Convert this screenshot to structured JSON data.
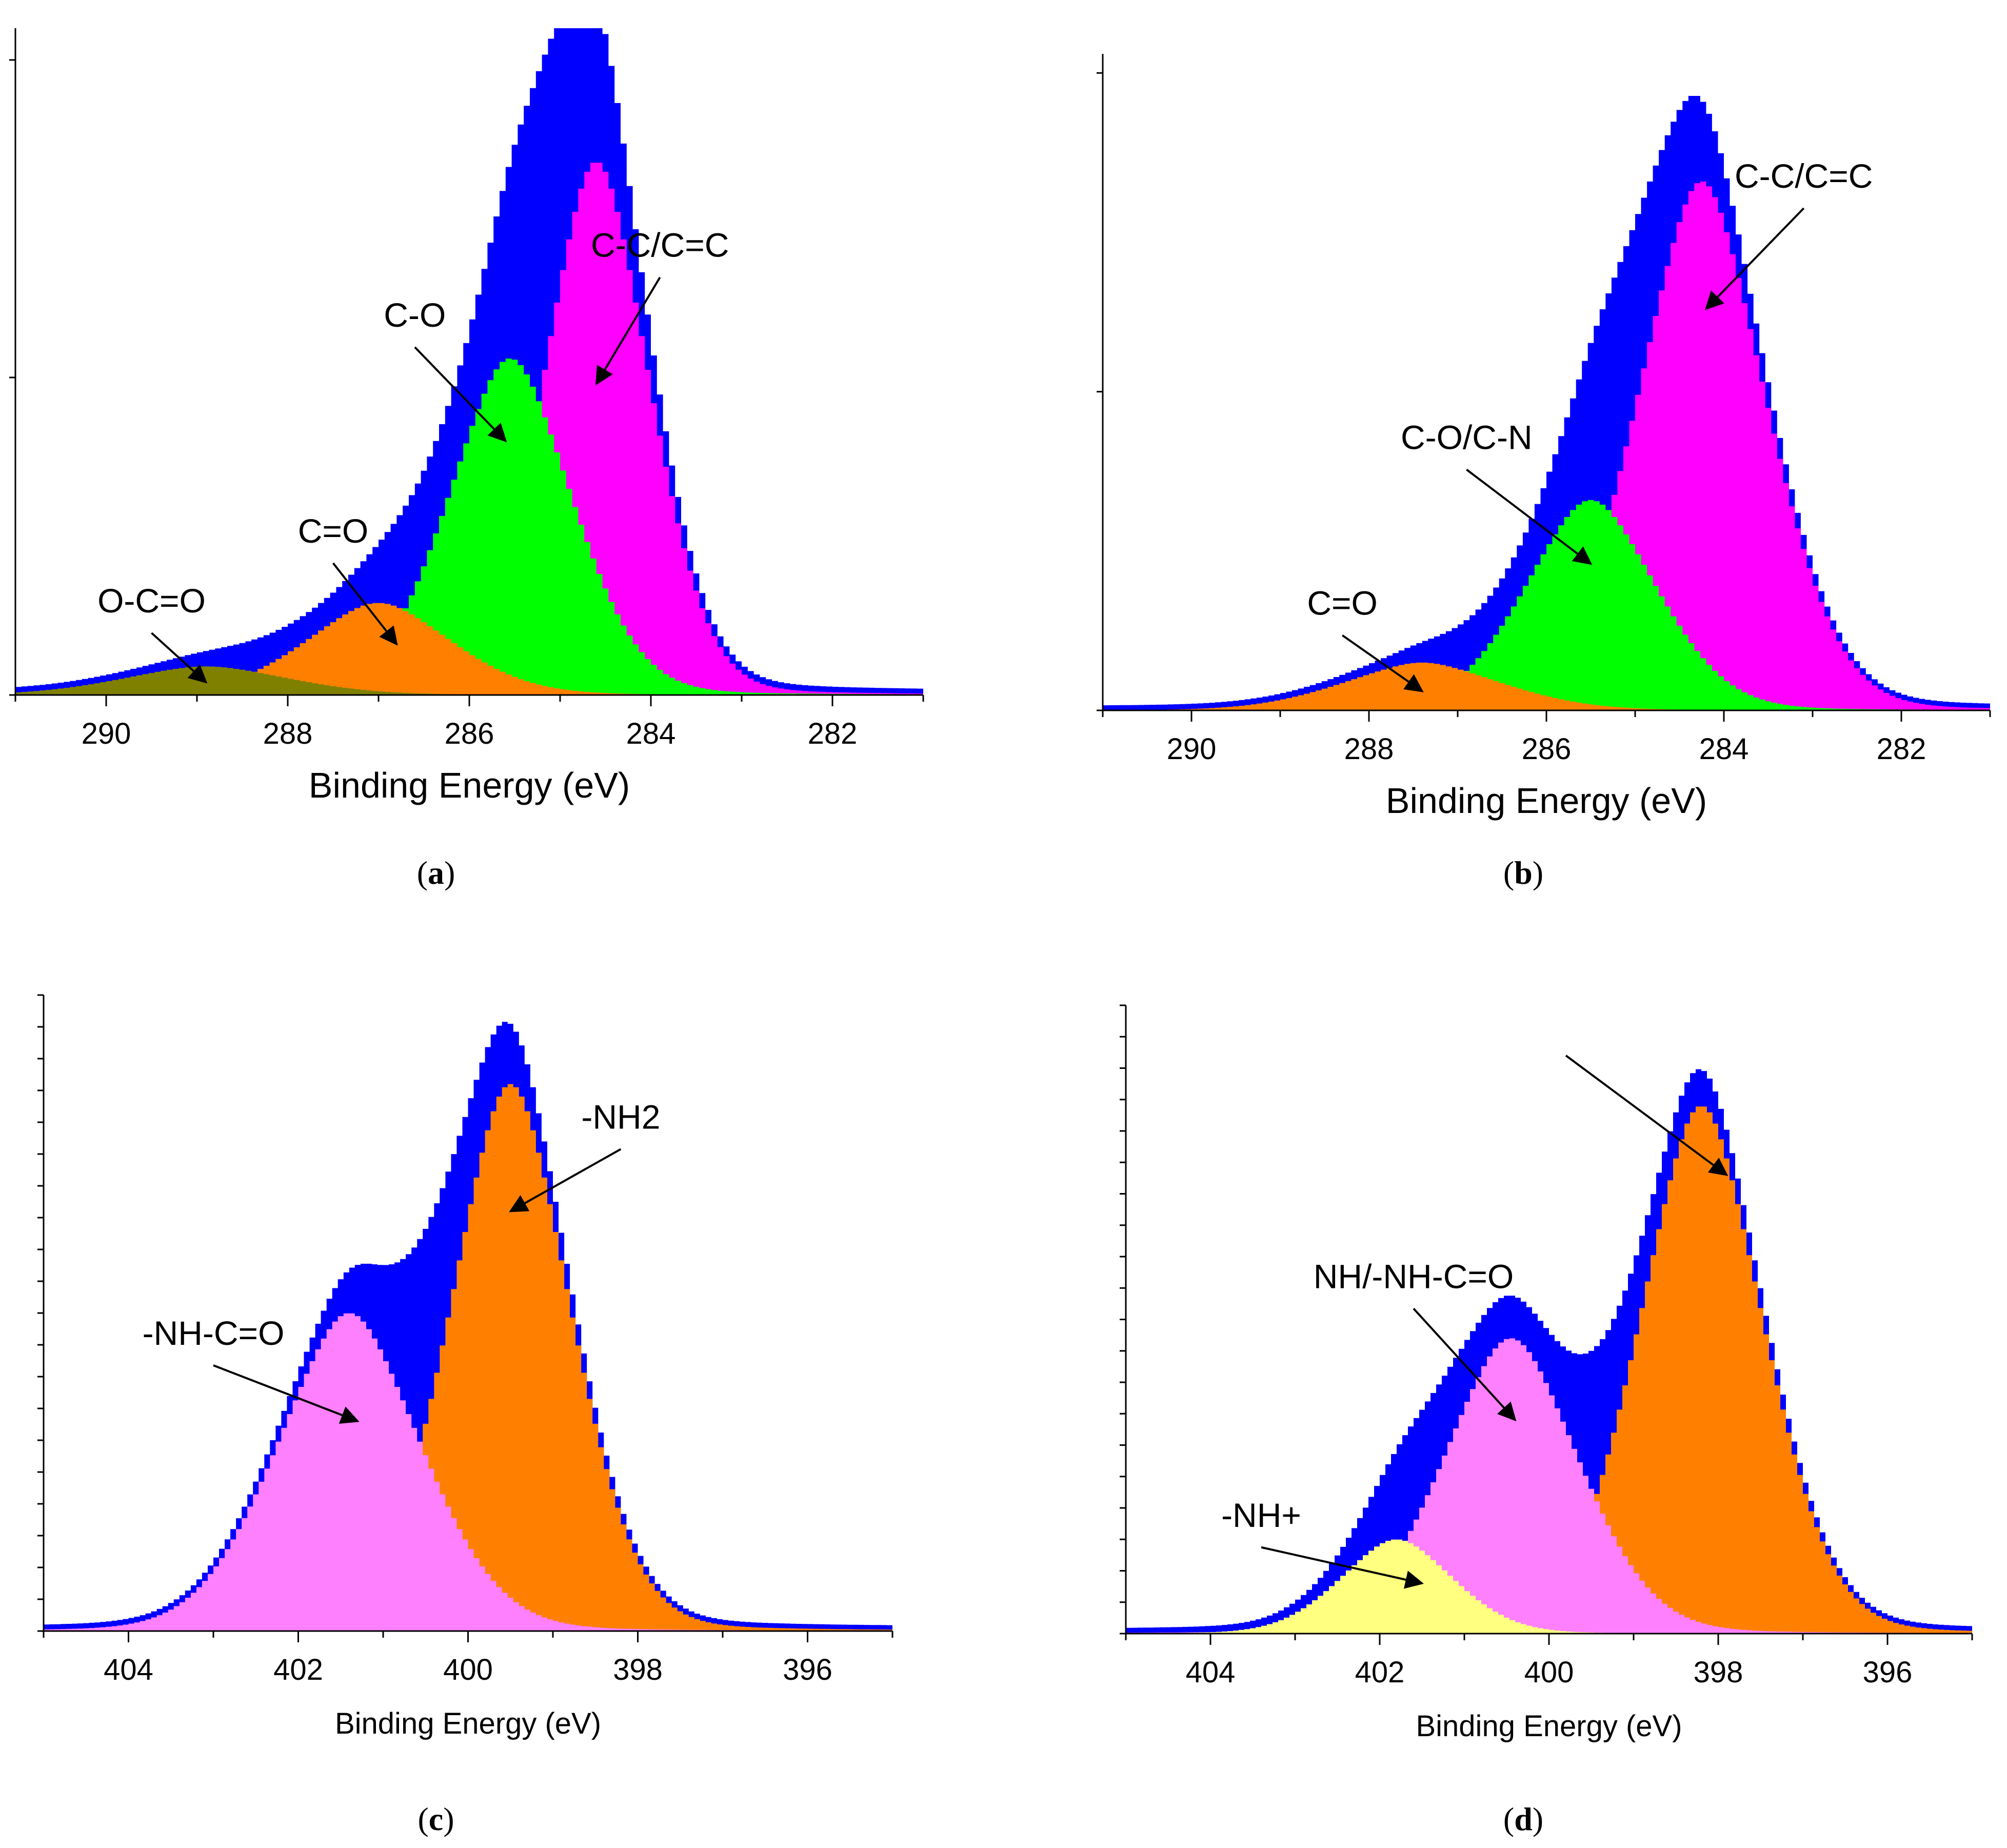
{
  "figure": {
    "background": "#ffffff"
  },
  "colors": {
    "envelope": "#0000ff",
    "magenta": "#ff00ff",
    "green": "#00ff00",
    "orange": "#ff8000",
    "olive": "#808000",
    "pink": "#ff80ff",
    "yellow": "#ffff80",
    "axis": "#000000"
  },
  "chart_data": [
    {
      "id": "a",
      "type": "area",
      "caption": "a",
      "xlabel": "Binding Energy (eV)",
      "ylabel": "",
      "xlim": [
        291,
        281
      ],
      "ylim": [
        0,
        1.05
      ],
      "xticks": [
        290,
        288,
        286,
        284,
        282
      ],
      "y_tick_values": [
        0,
        0.5,
        1.0
      ],
      "y_ticks_labeled": false,
      "envelope_color": "envelope",
      "series": [
        {
          "name": "C-C/C=C",
          "color": "magenta",
          "center": 284.6,
          "sigma": 0.62,
          "gamma": 0.45,
          "mix": 0.18,
          "amplitude": 0.84
        },
        {
          "name": "C-O",
          "color": "green",
          "center": 285.55,
          "sigma": 0.72,
          "gamma": 0.5,
          "mix": 0.18,
          "amplitude": 0.53
        },
        {
          "name": "C=O",
          "color": "orange",
          "center": 287.0,
          "sigma": 0.85,
          "gamma": 0.6,
          "mix": 0.2,
          "amplitude": 0.145
        },
        {
          "name": "O-C=O",
          "color": "olive",
          "center": 288.9,
          "sigma": 0.95,
          "gamma": 0.7,
          "mix": 0.2,
          "amplitude": 0.045
        }
      ],
      "annotations": [
        {
          "text": "C-C/C=C",
          "x": 283.9,
          "y": 0.69,
          "ax": 284.6,
          "ay": 0.49
        },
        {
          "text": "C-O",
          "x": 286.6,
          "y": 0.58,
          "ax": 285.6,
          "ay": 0.4
        },
        {
          "text": "C=O",
          "x": 287.5,
          "y": 0.24,
          "ax": 286.8,
          "ay": 0.08
        },
        {
          "text": "O-C=O",
          "x": 289.5,
          "y": 0.13,
          "ax": 288.9,
          "ay": 0.02
        }
      ]
    },
    {
      "id": "b",
      "type": "area",
      "caption": "b",
      "xlabel": "Binding Energy (eV)",
      "ylabel": "",
      "xlim": [
        291,
        281
      ],
      "ylim": [
        0,
        1.03
      ],
      "xticks": [
        290,
        288,
        286,
        284,
        282
      ],
      "y_tick_values": [
        0,
        0.5,
        1.0
      ],
      "y_ticks_labeled": false,
      "envelope_color": "envelope",
      "series": [
        {
          "name": "C-C/C=C",
          "color": "magenta",
          "center": 284.25,
          "sigma": 0.78,
          "gamma": 0.5,
          "mix": 0.18,
          "amplitude": 0.83
        },
        {
          "name": "C-O/C-N",
          "color": "green",
          "center": 285.5,
          "sigma": 0.78,
          "gamma": 0.55,
          "mix": 0.18,
          "amplitude": 0.33
        },
        {
          "name": "C=O",
          "color": "orange",
          "center": 287.4,
          "sigma": 0.95,
          "gamma": 0.6,
          "mix": 0.2,
          "amplitude": 0.075
        }
      ],
      "annotations": [
        {
          "text": "C-C/C=C",
          "x": 283.1,
          "y": 0.82,
          "ax": 284.2,
          "ay": 0.63
        },
        {
          "text": "C-O/C-N",
          "x": 286.9,
          "y": 0.41,
          "ax": 285.5,
          "ay": 0.23
        },
        {
          "text": "C=O",
          "x": 288.3,
          "y": 0.15,
          "ax": 287.4,
          "ay": 0.03
        }
      ]
    },
    {
      "id": "c",
      "type": "area",
      "caption": "c",
      "xlabel": "Binding Energy (eV)",
      "ylabel": "",
      "xlim": [
        405,
        395
      ],
      "ylim": [
        0,
        1.0
      ],
      "xticks": [
        404,
        402,
        400,
        398,
        396
      ],
      "y_tick_values": [
        0,
        0.05,
        0.1,
        0.15,
        0.2,
        0.25,
        0.3,
        0.35,
        0.4,
        0.45,
        0.5,
        0.55,
        0.6,
        0.65,
        0.7,
        0.75,
        0.8,
        0.85,
        0.9,
        0.95,
        1.0
      ],
      "y_ticks_labeled": false,
      "envelope_color": "envelope",
      "series": [
        {
          "name": "-NH2",
          "color": "orange",
          "center": 399.5,
          "sigma": 0.75,
          "gamma": 0.55,
          "mix": 0.18,
          "amplitude": 0.86
        },
        {
          "name": "-NH-C=O",
          "color": "pink",
          "center": 401.4,
          "sigma": 0.9,
          "gamma": 0.6,
          "mix": 0.18,
          "amplitude": 0.5
        }
      ],
      "annotations": [
        {
          "text": "-NH2",
          "x": 398.2,
          "y": 0.79,
          "ax": 399.5,
          "ay": 0.66
        },
        {
          "text": "-NH-C=O",
          "x": 403.0,
          "y": 0.45,
          "ax": 401.3,
          "ay": 0.33
        }
      ]
    },
    {
      "id": "d",
      "type": "area",
      "caption": "d",
      "xlabel": "Binding Energy (eV)",
      "ylabel": "",
      "xlim": [
        405,
        395
      ],
      "ylim": [
        0,
        1.0
      ],
      "xticks": [
        404,
        402,
        400,
        398,
        396
      ],
      "y_tick_values": [
        0,
        0.05,
        0.1,
        0.15,
        0.2,
        0.25,
        0.3,
        0.35,
        0.4,
        0.45,
        0.5,
        0.55,
        0.6,
        0.65,
        0.7,
        0.75,
        0.8,
        0.85,
        0.9,
        0.95,
        1.0
      ],
      "y_ticks_labeled": false,
      "envelope_color": "envelope",
      "series": [
        {
          "name": "",
          "color": "orange",
          "center": 398.2,
          "sigma": 0.78,
          "gamma": 0.55,
          "mix": 0.18,
          "amplitude": 0.84
        },
        {
          "name": "NH/-NH-C=O",
          "color": "pink",
          "center": 400.45,
          "sigma": 0.85,
          "gamma": 0.6,
          "mix": 0.18,
          "amplitude": 0.47
        },
        {
          "name": "-NH+",
          "color": "yellow",
          "center": 401.8,
          "sigma": 0.7,
          "gamma": 0.5,
          "mix": 0.18,
          "amplitude": 0.15
        }
      ],
      "annotations": [
        {
          "text": "",
          "x": 399.8,
          "y": 0.92,
          "ax": 397.9,
          "ay": 0.73
        },
        {
          "text": "NH/-NH-C=O",
          "x": 401.6,
          "y": 0.55,
          "ax": 400.4,
          "ay": 0.34
        },
        {
          "text": "-NH+",
          "x": 403.4,
          "y": 0.17,
          "ax": 401.5,
          "ay": 0.08
        }
      ]
    }
  ]
}
